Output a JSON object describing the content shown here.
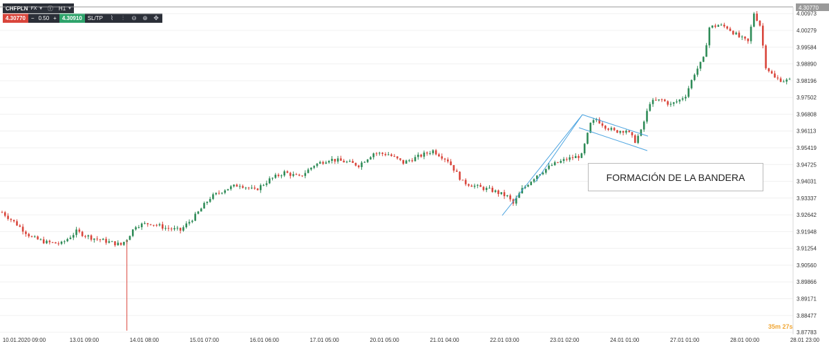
{
  "toolbar": {
    "symbol": "CHFPLN",
    "market": "FX",
    "timeframe": "H1",
    "sell_price": "4.30770",
    "spread": "0.50",
    "buy_price": "4.30910",
    "sltp_label": "SL/TP",
    "minus": "−",
    "plus": "+",
    "icons": [
      "info-icon",
      "chart-type-icon",
      "indicators-icon",
      "zoom-out-icon",
      "zoom-in-icon",
      "crosshair-move-icon"
    ]
  },
  "price_tag": "4.30770",
  "timer": "35m 27s",
  "annotation": "FORMACIÓN DE LA BANDERA",
  "colors": {
    "up": "#2e8b57",
    "down": "#d9453b",
    "trendline": "#4aa3e0",
    "grid": "#f0f0f0"
  },
  "chart_data": {
    "type": "candlestick",
    "x_tick_labels": [
      "10.01.2020 09:00",
      "13.01 09:00",
      "14.01 08:00",
      "15.01 07:00",
      "16.01 06:00",
      "17.01 05:00",
      "20.01 05:00",
      "21.01 04:00",
      "22.01 03:00",
      "23.01 02:00",
      "24.01 01:00",
      "27.01 01:00",
      "28.01 00:00",
      "28.01 23:00"
    ],
    "y_tick_labels": [
      "4.00973",
      "4.00279",
      "3.99584",
      "3.98890",
      "3.98196",
      "3.97502",
      "3.96808",
      "3.96113",
      "3.95419",
      "3.94725",
      "3.94031",
      "3.93337",
      "3.92642",
      "3.91948",
      "3.91254",
      "3.90560",
      "3.89866",
      "3.89171",
      "3.88477",
      "3.87783"
    ],
    "ylim": [
      3.877,
      4.0125
    ],
    "approx_close_path": [
      [
        0,
        3.9275
      ],
      [
        5,
        3.9225
      ],
      [
        10,
        3.917
      ],
      [
        15,
        3.915
      ],
      [
        20,
        3.9145
      ],
      [
        25,
        3.9195
      ],
      [
        30,
        3.917
      ],
      [
        35,
        3.9155
      ],
      [
        40,
        3.914
      ],
      [
        42,
        3.9165
      ],
      [
        45,
        3.922
      ],
      [
        50,
        3.923
      ],
      [
        55,
        3.921
      ],
      [
        60,
        3.92
      ],
      [
        65,
        3.926
      ],
      [
        70,
        3.9335
      ],
      [
        75,
        3.937
      ],
      [
        80,
        3.939
      ],
      [
        85,
        3.9365
      ],
      [
        90,
        3.941
      ],
      [
        95,
        3.944
      ],
      [
        100,
        3.942
      ],
      [
        105,
        3.947
      ],
      [
        110,
        3.9495
      ],
      [
        115,
        3.9485
      ],
      [
        120,
        3.947
      ],
      [
        125,
        3.952
      ],
      [
        130,
        3.9515
      ],
      [
        135,
        3.948
      ],
      [
        140,
        3.9505
      ],
      [
        145,
        3.953
      ],
      [
        150,
        3.949
      ],
      [
        155,
        3.94
      ],
      [
        160,
        3.938
      ],
      [
        165,
        3.9365
      ],
      [
        170,
        3.934
      ],
      [
        172,
        3.931
      ],
      [
        175,
        3.937
      ],
      [
        180,
        3.943
      ],
      [
        185,
        3.947
      ],
      [
        190,
        3.9495
      ],
      [
        195,
        3.951
      ],
      [
        198,
        3.964
      ],
      [
        200,
        3.966
      ],
      [
        203,
        3.963
      ],
      [
        206,
        3.961
      ],
      [
        210,
        3.9615
      ],
      [
        213,
        3.957
      ],
      [
        215,
        3.961
      ],
      [
        218,
        3.973
      ],
      [
        222,
        3.974
      ],
      [
        225,
        3.972
      ],
      [
        228,
        3.974
      ],
      [
        230,
        3.976
      ],
      [
        233,
        3.985
      ],
      [
        236,
        3.991
      ],
      [
        238,
        4.004
      ],
      [
        241,
        4.005
      ],
      [
        244,
        4.004
      ],
      [
        248,
        4.0
      ],
      [
        251,
        3.998
      ],
      [
        253,
        4.01
      ],
      [
        255,
        4.005
      ],
      [
        257,
        3.988
      ],
      [
        260,
        3.983
      ],
      [
        263,
        3.982
      ]
    ]
  }
}
